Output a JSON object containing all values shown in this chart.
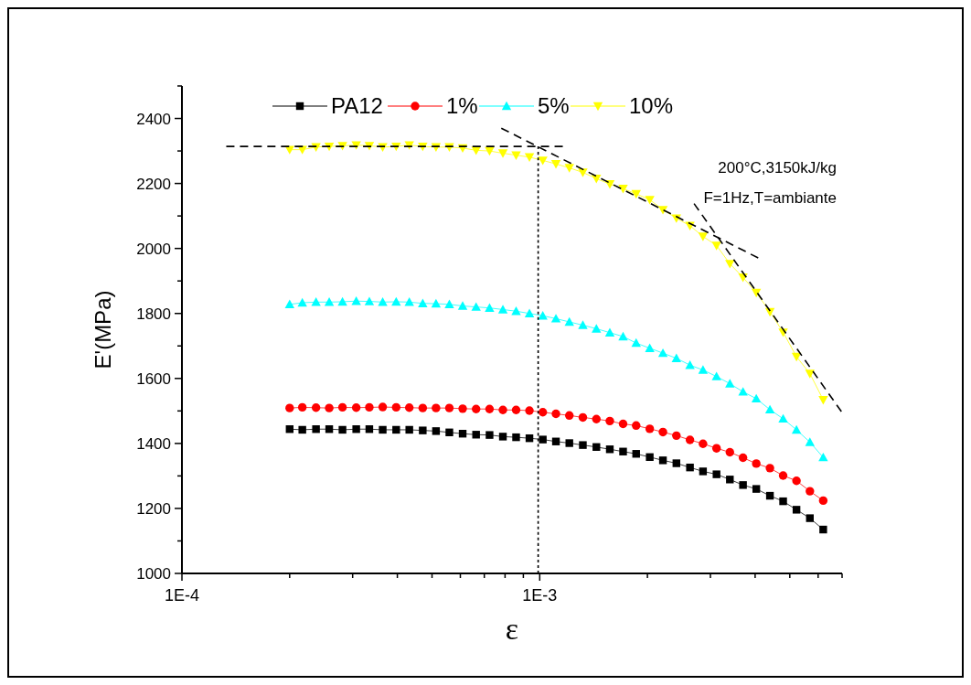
{
  "chart_data": {
    "type": "line",
    "xlabel": "ε",
    "ylabel": "E'(MPa)",
    "log": "x",
    "legend": "top",
    "grid": false,
    "xlim": [
      0.0001,
      0.007
    ],
    "xticks": [
      {
        "value": 0.0001,
        "label": "1E-4"
      },
      {
        "value": 0.0002,
        "label": null
      },
      {
        "value": 0.0003,
        "label": null
      },
      {
        "value": 0.0004,
        "label": null
      },
      {
        "value": 0.0005,
        "label": null
      },
      {
        "value": 0.0006,
        "label": null
      },
      {
        "value": 0.0007,
        "label": null
      },
      {
        "value": 0.0008,
        "label": null
      },
      {
        "value": 0.0009,
        "label": null
      },
      {
        "value": 0.001,
        "label": "1E-3"
      },
      {
        "value": 0.002,
        "label": null
      },
      {
        "value": 0.003,
        "label": null
      },
      {
        "value": 0.004,
        "label": null
      },
      {
        "value": 0.005,
        "label": null
      },
      {
        "value": 0.006,
        "label": null
      },
      {
        "value": 0.007,
        "label": null
      }
    ],
    "ylim": [
      1000,
      2500
    ],
    "yticks": [
      1000,
      {
        "value": 1100,
        "label": null
      },
      1200,
      {
        "value": 1300,
        "label": null
      },
      1400,
      {
        "value": 1500,
        "label": null
      },
      1600,
      {
        "value": 1700,
        "label": null
      },
      1800,
      {
        "value": 1900,
        "label": null
      },
      2000,
      {
        "value": 2100,
        "label": null
      },
      2200,
      {
        "value": 2300,
        "label": null
      },
      2400,
      {
        "value": 2500,
        "label": null
      }
    ],
    "annotations": [
      "200°C,3150kJ/kg",
      "F=1Hz,T=ambiante"
    ],
    "x": [
      0.0002,
      0.000217,
      0.000237,
      0.000258,
      0.000281,
      0.000307,
      0.000334,
      0.000364,
      0.000397,
      0.000432,
      0.000471,
      0.000513,
      0.000559,
      0.000609,
      0.000664,
      0.000724,
      0.000789,
      0.000859,
      0.000936,
      0.00102,
      0.00111,
      0.00121,
      0.00132,
      0.00144,
      0.00157,
      0.00171,
      0.00186,
      0.00203,
      0.00221,
      0.00241,
      0.00263,
      0.00286,
      0.00312,
      0.0034,
      0.0037,
      0.00403,
      0.0044,
      0.00479,
      0.00522,
      0.00569,
      0.0062
    ],
    "series": [
      {
        "name": "PA12",
        "color": "#000000",
        "marker": "square",
        "values": [
          1444,
          1442,
          1444,
          1444,
          1442,
          1444,
          1444,
          1442,
          1442,
          1442,
          1440,
          1438,
          1434,
          1430,
          1427,
          1426,
          1421,
          1419,
          1416,
          1412,
          1406,
          1401,
          1395,
          1389,
          1382,
          1375,
          1368,
          1358,
          1348,
          1339,
          1326,
          1314,
          1305,
          1289,
          1272,
          1260,
          1239,
          1222,
          1196,
          1170,
          1135
        ]
      },
      {
        "name": "1%",
        "color": "#ff0000",
        "marker": "circle",
        "values": [
          1509,
          1511,
          1510,
          1509,
          1511,
          1510,
          1511,
          1512,
          1511,
          1510,
          1509,
          1509,
          1509,
          1507,
          1506,
          1506,
          1503,
          1503,
          1501,
          1496,
          1491,
          1486,
          1480,
          1475,
          1469,
          1460,
          1455,
          1445,
          1435,
          1424,
          1411,
          1399,
          1385,
          1373,
          1356,
          1338,
          1324,
          1301,
          1285,
          1253,
          1224
        ]
      },
      {
        "name": "5%",
        "color": "#00ffff",
        "marker": "triangle",
        "values": [
          1828,
          1833,
          1835,
          1835,
          1836,
          1838,
          1837,
          1835,
          1836,
          1835,
          1831,
          1830,
          1828,
          1823,
          1820,
          1817,
          1812,
          1807,
          1800,
          1793,
          1784,
          1774,
          1764,
          1753,
          1741,
          1729,
          1709,
          1693,
          1678,
          1662,
          1641,
          1626,
          1606,
          1584,
          1559,
          1538,
          1504,
          1476,
          1442,
          1404,
          1357
        ]
      },
      {
        "name": "10%",
        "color": "#ffff00",
        "marker": "triangle-down",
        "values": [
          2304,
          2304,
          2312,
          2314,
          2316,
          2318,
          2316,
          2312,
          2314,
          2318,
          2314,
          2312,
          2312,
          2309,
          2302,
          2300,
          2293,
          2287,
          2281,
          2271,
          2260,
          2248,
          2234,
          2215,
          2198,
          2184,
          2168,
          2150,
          2119,
          2093,
          2070,
          2037,
          2009,
          1953,
          1911,
          1864,
          1805,
          1742,
          1667,
          1615,
          1534
        ]
      },
      {
        "type": "line",
        "color": "#000000",
        "marker": "none",
        "line_style": "dashed",
        "x": [
          0.000133,
          0.00116
        ],
        "values": [
          2314,
          2314
        ]
      },
      {
        "type": "line",
        "color": "#000000",
        "marker": "none",
        "line_style": "dotted",
        "x": [
          0.00099,
          0.00099
        ],
        "values": [
          1000,
          2314
        ]
      },
      {
        "type": "line",
        "color": "#000000",
        "marker": "none",
        "line_style": "dashed",
        "x": [
          0.000781,
          0.00408
        ],
        "values": [
          2370,
          1971
        ]
      },
      {
        "type": "line",
        "color": "#000000",
        "marker": "none",
        "line_style": "dashed",
        "x": [
          0.0027,
          0.00697
        ],
        "values": [
          2138,
          1498
        ]
      }
    ]
  }
}
